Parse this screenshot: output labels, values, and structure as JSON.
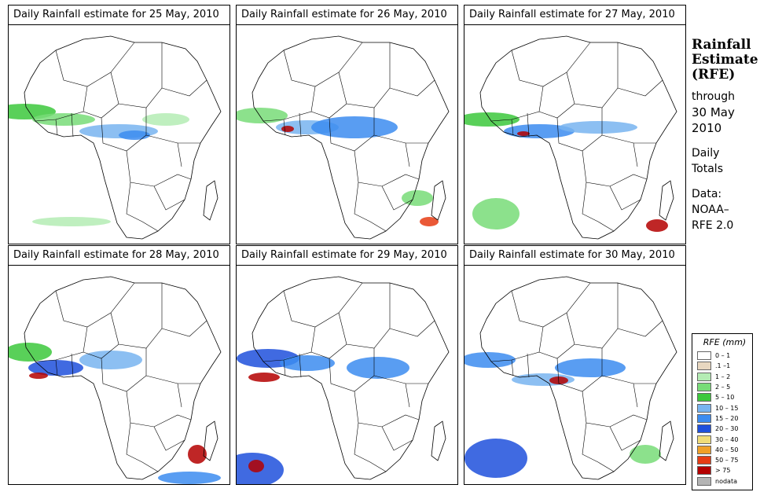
{
  "colors": {
    "country_border": "#000000",
    "panel_border": "#000000"
  },
  "panels": [
    {
      "title": "Daily Rainfall estimate for  25 May, 2010",
      "date": "25 May, 2010"
    },
    {
      "title": "Daily Rainfall estimate for  26 May, 2010",
      "date": "26 May, 2010"
    },
    {
      "title": "Daily Rainfall estimate for  27 May, 2010",
      "date": "27 May, 2010"
    },
    {
      "title": "Daily Rainfall estimate for  28 May, 2010",
      "date": "28 May, 2010"
    },
    {
      "title": "Daily Rainfall estimate for  29 May, 2010",
      "date": "29 May, 2010"
    },
    {
      "title": "Daily Rainfall estimate for  30 May, 2010",
      "date": "30 May, 2010"
    }
  ],
  "side": {
    "title_line1": "Rainfall",
    "title_line2": "Estimate",
    "title_line3": "(RFE)",
    "through": "through",
    "date_line1": "30 May",
    "date_line2": "2010",
    "daily": "Daily",
    "totals": "Totals",
    "data_label": "Data:",
    "source_line1": "NOAA–",
    "source_line2": "RFE 2.0"
  },
  "legend": {
    "title": "RFE (mm)",
    "entries": [
      {
        "label": "0 – 1",
        "color": "#ffffff"
      },
      {
        "label": ".1 –1",
        "color": "#e8d7c0"
      },
      {
        "label": "1 – 2",
        "color": "#b4ecb4"
      },
      {
        "label": "2 – 5",
        "color": "#78dc78"
      },
      {
        "label": "5 – 10",
        "color": "#3cc83c"
      },
      {
        "label": "10 – 15",
        "color": "#78b4f0"
      },
      {
        "label": "15 – 20",
        "color": "#3c8cf0"
      },
      {
        "label": "20 – 30",
        "color": "#1e50dc"
      },
      {
        "label": "30 – 40",
        "color": "#f0dc78"
      },
      {
        "label": "40 – 50",
        "color": "#f0a028"
      },
      {
        "label": "50 – 75",
        "color": "#e63c14"
      },
      {
        "label": "> 75",
        "color": "#b40000"
      },
      {
        "label": "nodata",
        "color": "#b4b4b4"
      }
    ]
  }
}
